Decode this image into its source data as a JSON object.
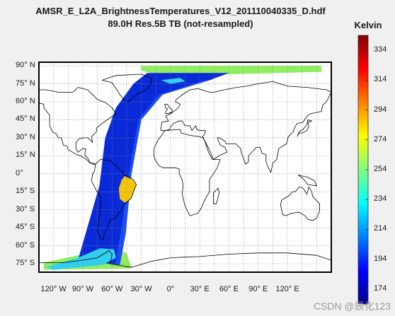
{
  "chart_data": {
    "type": "heatmap",
    "title": "AMSR_E_L2A_BrightnessTemperatures_V12_201110040335_D.hdf",
    "subtitle": "89.0H Res.5B TB (not-resampled)",
    "colorbar": {
      "label": "Kelvin",
      "range": [
        164,
        344
      ],
      "ticks": [
        "174",
        "194",
        "214",
        "234",
        "254",
        "274",
        "294",
        "314",
        "334"
      ],
      "colors": [
        "#00008f",
        "#0000ff",
        "#0080ff",
        "#00ffff",
        "#80ff80",
        "#ffff00",
        "#ff8000",
        "#ff0000",
        "#800000"
      ]
    },
    "y_ticks": [
      {
        "lat": 90,
        "label": "90° N"
      },
      {
        "lat": 75,
        "label": "75° N"
      },
      {
        "lat": 60,
        "label": "60° N"
      },
      {
        "lat": 45,
        "label": "45° N"
      },
      {
        "lat": 30,
        "label": "30° N"
      },
      {
        "lat": 15,
        "label": "15° N"
      },
      {
        "lat": 0,
        "label": "0°"
      },
      {
        "lat": -15,
        "label": "15° S"
      },
      {
        "lat": -30,
        "label": "30° S"
      },
      {
        "lat": -45,
        "label": "45° S"
      },
      {
        "lat": -60,
        "label": "60° S"
      },
      {
        "lat": -75,
        "label": "75° S"
      }
    ],
    "x_ticks": [
      {
        "lon": -120,
        "label": "120° W"
      },
      {
        "lon": -90,
        "label": "90° W"
      },
      {
        "lon": -60,
        "label": "60° W"
      },
      {
        "lon": -30,
        "label": "30° W"
      },
      {
        "lon": 0,
        "label": "0°"
      },
      {
        "lon": 30,
        "label": "30° E"
      },
      {
        "lon": 60,
        "label": "60° E"
      },
      {
        "lon": 90,
        "label": "90° E"
      },
      {
        "lon": 120,
        "label": "120° E"
      }
    ],
    "grid": true,
    "map_colors": {
      "swath_main": "#0a2ad8",
      "swath_edge": "#1f5cff",
      "polar_band": "#90ee60",
      "cyan_patch": "#30d0f0",
      "hot_patch": "#f2c40a"
    }
  },
  "watermark": "CSDN @辰化123"
}
